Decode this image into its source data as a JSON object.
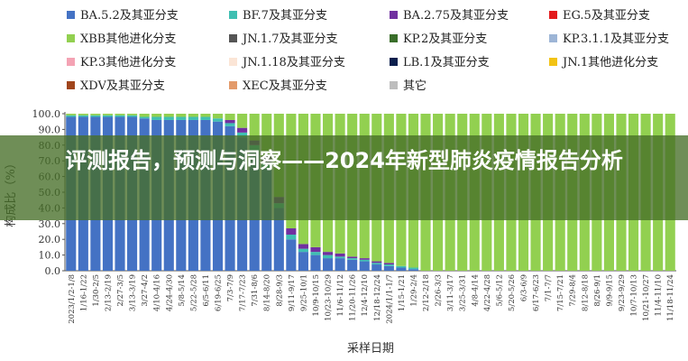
{
  "banner": {
    "title": "评测报告，预测与洞察——2024年新型肺炎疫情报告分析"
  },
  "chart_data": {
    "type": "bar",
    "stacked": true,
    "xlabel": "采样日期",
    "ylabel": "构成比（%）",
    "ylim": [
      0,
      100
    ],
    "yticks": [
      "0.0",
      "10.0",
      "20.0",
      "30.0",
      "40.0",
      "50.0",
      "60.0",
      "70.0",
      "80.0",
      "90.0",
      "100.0"
    ],
    "x_tick_labels": [
      "2023/1/2-1/8",
      "1/16-1/22",
      "1/30-2/5",
      "2/13-2/19",
      "2/27-3/5",
      "3/13-3/19",
      "3/27-4/2",
      "4/10-4/16",
      "4/24-4/30",
      "5/8-5/14",
      "5/22-5/28",
      "6/5-6/11",
      "6/19-6/25",
      "7/3-7/9",
      "7/17-7/23",
      "7/31-8/6",
      "8/14-8/20",
      "8/28-9/3",
      "9/11-9/17",
      "9/25-10/1",
      "10/9-10/15",
      "10/23-10/29",
      "11/6-11/12",
      "11/20-11/26",
      "12/4-12/10",
      "12/18-12/24",
      "2024/1/1-1/7",
      "1/15-1/21",
      "1/29-2/4",
      "2/12-2/18",
      "2/26-3/3",
      "3/11-3/17",
      "3/25-3/31",
      "4/8-4/14",
      "4/22-4/28",
      "5/6-5/12",
      "5/20-5/26",
      "6/3-6/9",
      "6/17-6/23",
      "7/1-7/7",
      "7/15-7/21",
      "7/29-8/4",
      "8/12-8/18",
      "8/26-9/1",
      "9/9-9/15",
      "9/23-9/29",
      "10/7-10/13",
      "10/21-10/27",
      "11/4-11/10",
      "11/18-11/24"
    ],
    "legend_position": "top",
    "grid": false,
    "series": [
      {
        "name": "BA.5.2及其亚分支",
        "color": "#4472C4",
        "values": [
          98,
          98,
          98,
          98,
          98,
          98,
          97,
          96,
          96,
          96,
          96,
          96,
          95,
          92,
          85,
          76,
          65,
          40,
          20,
          12,
          10,
          8,
          8,
          7,
          6,
          4,
          3,
          2,
          1,
          0,
          0,
          0,
          0,
          0,
          0,
          0,
          0,
          0,
          0,
          0,
          0,
          0,
          0,
          0,
          0,
          0,
          0,
          0,
          0,
          0
        ]
      },
      {
        "name": "BF.7及其亚分支",
        "color": "#3FBFB2",
        "values": [
          1,
          1,
          1,
          1,
          1,
          1,
          1,
          2,
          2,
          2,
          2,
          2,
          2,
          2,
          3,
          4,
          4,
          3,
          3,
          2,
          2,
          2,
          1,
          1,
          1,
          1,
          1,
          1,
          1,
          0,
          0,
          0,
          0,
          0,
          0,
          0,
          0,
          0,
          0,
          0,
          0,
          0,
          0,
          0,
          0,
          0,
          0,
          0,
          0,
          0
        ]
      },
      {
        "name": "BA.2.75及其亚分支",
        "color": "#7030A0",
        "values": [
          0,
          0,
          0,
          0,
          0,
          0,
          0,
          0,
          0,
          0,
          0,
          0,
          0,
          2,
          3,
          3,
          4,
          4,
          4,
          3,
          3,
          2,
          2,
          1,
          1,
          1,
          1,
          0,
          0,
          0,
          0,
          0,
          0,
          0,
          0,
          0,
          0,
          0,
          0,
          0,
          0,
          0,
          0,
          0,
          0,
          0,
          0,
          0,
          0,
          0
        ]
      },
      {
        "name": "EG.5及其亚分支",
        "color": "#E31A1C",
        "values": [
          0,
          0,
          0,
          0,
          0,
          0,
          0,
          0,
          0,
          0,
          0,
          0,
          0,
          0,
          0,
          0,
          0,
          0,
          0,
          0,
          0,
          0,
          0,
          0,
          0,
          0,
          0,
          0,
          0,
          0,
          0,
          0,
          0,
          0,
          0,
          0,
          0,
          0,
          0,
          0,
          0,
          0,
          0,
          0,
          0,
          0,
          0,
          0,
          0,
          0
        ]
      },
      {
        "name": "XBB其他进化分支",
        "color": "#92D050",
        "values": [
          1,
          1,
          1,
          1,
          1,
          1,
          2,
          2,
          2,
          2,
          2,
          2,
          3,
          4,
          9,
          17,
          27,
          53,
          73,
          83,
          85,
          88,
          89,
          91,
          92,
          94,
          95,
          97,
          98,
          100,
          100,
          100,
          100,
          100,
          100,
          100,
          100,
          100,
          100,
          100,
          100,
          100,
          100,
          100,
          100,
          100,
          100,
          100,
          100,
          100
        ]
      }
    ]
  }
}
